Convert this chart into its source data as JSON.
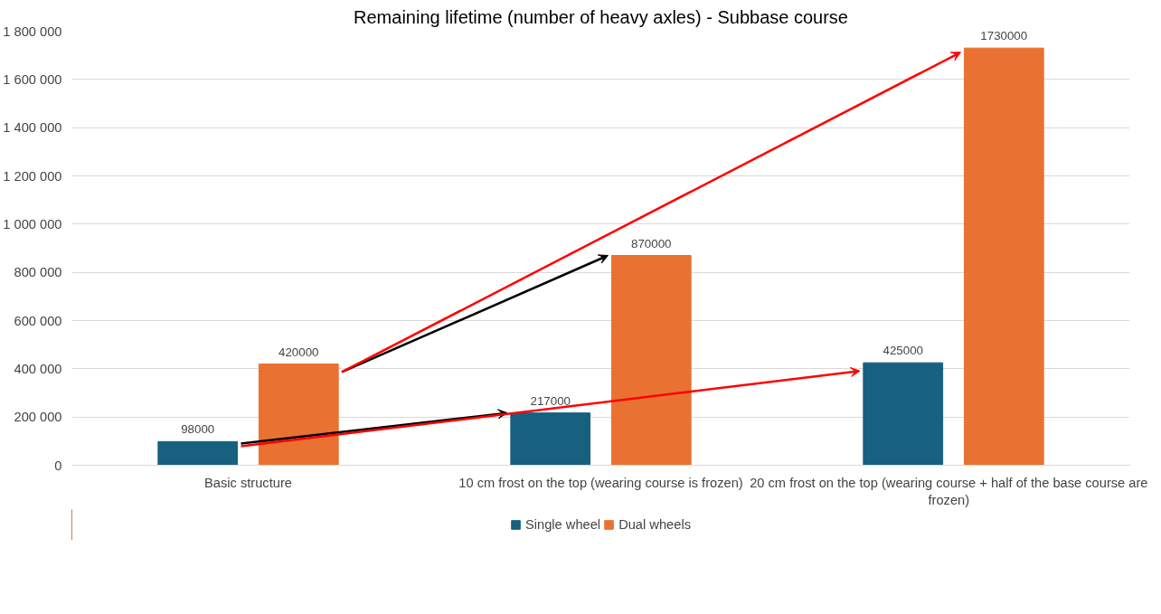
{
  "chart_data": {
    "type": "bar",
    "title": "Remaining lifetime (number of heavy axles) - Subbase course",
    "categories": [
      "Basic structure",
      "10 cm frost on the top (wearing course is frozen)",
      "20 cm frost on the top (wearing course + half of the base course are frozen)"
    ],
    "series": [
      {
        "name": "Single wheel",
        "color": "#17607f",
        "values": [
          98000,
          217000,
          425000
        ]
      },
      {
        "name": "Dual wheels",
        "color": "#e97132",
        "values": [
          420000,
          870000,
          1730000
        ]
      }
    ],
    "ylim": [
      0,
      1800000
    ],
    "yticks": [
      0,
      {
        "value": 200000,
        "label": "200 000"
      },
      {
        "value": 400000,
        "label": "400 000"
      },
      {
        "value": 600000,
        "label": "600 000"
      },
      {
        "value": 800000,
        "label": "800 000"
      },
      {
        "value": 1000000,
        "label": "1 000 000"
      },
      {
        "value": 1200000,
        "label": "1 200 000"
      },
      {
        "value": 1400000,
        "label": "1 400 000"
      },
      {
        "value": 1600000,
        "label": "1 600 000"
      },
      {
        "value": 1800000,
        "label": "1 800 000"
      }
    ],
    "grid": "y",
    "legend": "bottom",
    "data_labels": true
  }
}
